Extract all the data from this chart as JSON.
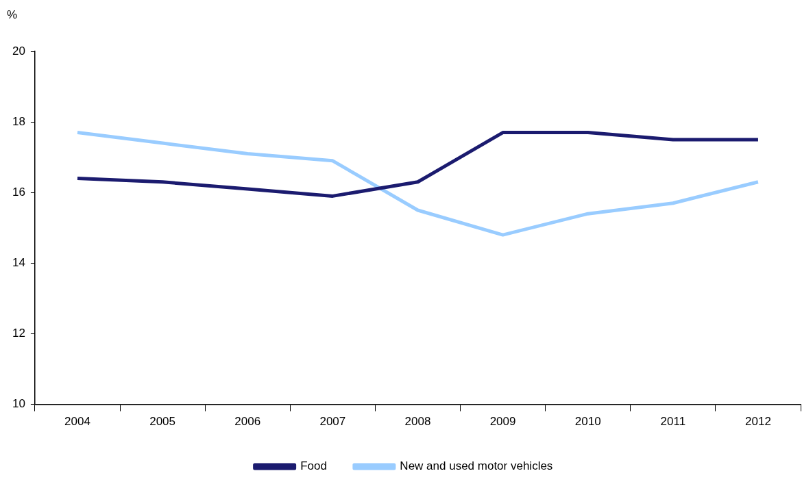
{
  "chart_data": {
    "type": "line",
    "ylabel": "%",
    "categories": [
      "2004",
      "2005",
      "2006",
      "2007",
      "2008",
      "2009",
      "2010",
      "2011",
      "2012"
    ],
    "series": [
      {
        "name": "Food",
        "color": "#1b1b6f",
        "values": [
          16.4,
          16.3,
          16.1,
          15.9,
          16.3,
          17.7,
          17.7,
          17.5,
          17.5
        ]
      },
      {
        "name": "New and used motor vehicles",
        "color": "#99ccff",
        "values": [
          17.7,
          17.4,
          17.1,
          16.9,
          15.5,
          14.8,
          15.4,
          15.7,
          16.3
        ]
      }
    ],
    "ylim": [
      10,
      20
    ],
    "yticks": [
      10,
      12,
      14,
      16,
      18,
      20
    ],
    "grid": false,
    "legend": "bottom",
    "marker": "none",
    "line_style": "solid"
  }
}
